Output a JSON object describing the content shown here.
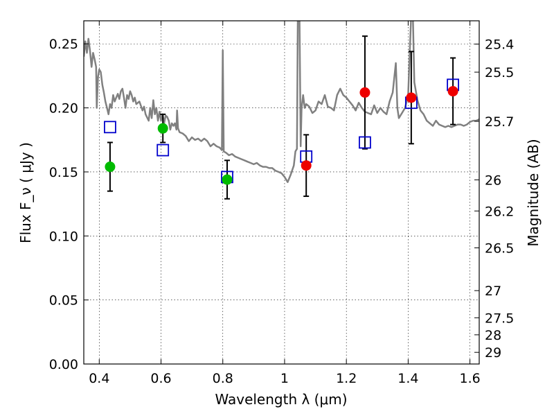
{
  "chart_data": {
    "type": "scatter",
    "title": "",
    "xlabel": "Wavelength  λ (μm)",
    "ylabel": "Flux  F_ν  ( μJy )",
    "ylabel_right": "Magnitude (AB)",
    "xlim": [
      0.35,
      1.63
    ],
    "ylim": [
      0.0,
      0.268
    ],
    "grid": true,
    "x_ticks": [
      0.4,
      0.6,
      0.8,
      1.0,
      1.2,
      1.4,
      1.6
    ],
    "x_tick_labels": [
      "0.4",
      "0.6",
      "0.8",
      "1",
      "1.2",
      "1.4",
      "1.6"
    ],
    "y_ticks": [
      0.0,
      0.05,
      0.1,
      0.15,
      0.2,
      0.25
    ],
    "y_tick_labels": [
      "0.00",
      "0.05",
      "0.10",
      "0.15",
      "0.20",
      "0.25"
    ],
    "right_ticks": [
      {
        "label": "25.4",
        "flux": 0.2498
      },
      {
        "label": "25.5",
        "flux": 0.2279
      },
      {
        "label": "25.7",
        "flux": 0.1895
      },
      {
        "label": "26",
        "flux": 0.1438
      },
      {
        "label": "26.2",
        "flux": 0.1195
      },
      {
        "label": "26.5",
        "flux": 0.0907
      },
      {
        "label": "27",
        "flux": 0.0573
      },
      {
        "label": "27.5",
        "flux": 0.0361
      },
      {
        "label": "28",
        "flux": 0.0228
      },
      {
        "label": "29",
        "flux": 0.0091
      }
    ],
    "colors": {
      "model": "#808080",
      "photometry_green": "#00bb00",
      "photometry_red": "#ee0000",
      "model_bands": "#0000cc",
      "errorbar": "#000000"
    },
    "series": [
      {
        "name": "observed_green",
        "marker": "circle",
        "color": "#00bb00",
        "points": [
          {
            "x": 0.435,
            "y": 0.154,
            "err": 0.019
          },
          {
            "x": 0.606,
            "y": 0.184,
            "err": 0.011
          },
          {
            "x": 0.814,
            "y": 0.144,
            "err": 0.015
          }
        ]
      },
      {
        "name": "observed_red",
        "marker": "circle",
        "color": "#ee0000",
        "points": [
          {
            "x": 1.07,
            "y": 0.155,
            "err": 0.024
          },
          {
            "x": 1.26,
            "y": 0.212,
            "err": 0.044
          },
          {
            "x": 1.41,
            "y": 0.208,
            "err": 0.036
          },
          {
            "x": 1.545,
            "y": 0.213,
            "err": 0.026
          }
        ]
      },
      {
        "name": "model_bands",
        "marker": "square",
        "color": "#0000cc",
        "points": [
          {
            "x": 0.435,
            "y": 0.185
          },
          {
            "x": 0.606,
            "y": 0.167
          },
          {
            "x": 0.814,
            "y": 0.146
          },
          {
            "x": 1.07,
            "y": 0.162
          },
          {
            "x": 1.26,
            "y": 0.173
          },
          {
            "x": 1.41,
            "y": 0.204
          },
          {
            "x": 1.545,
            "y": 0.218
          }
        ]
      },
      {
        "name": "model_spectrum",
        "type": "line",
        "color": "#808080",
        "points": [
          [
            0.35,
            0.24
          ],
          [
            0.355,
            0.252
          ],
          [
            0.36,
            0.243
          ],
          [
            0.365,
            0.254
          ],
          [
            0.37,
            0.245
          ],
          [
            0.375,
            0.232
          ],
          [
            0.38,
            0.243
          ],
          [
            0.385,
            0.238
          ],
          [
            0.39,
            0.232
          ],
          [
            0.392,
            0.2
          ],
          [
            0.396,
            0.224
          ],
          [
            0.4,
            0.23
          ],
          [
            0.405,
            0.228
          ],
          [
            0.41,
            0.218
          ],
          [
            0.415,
            0.212
          ],
          [
            0.42,
            0.205
          ],
          [
            0.425,
            0.2
          ],
          [
            0.43,
            0.195
          ],
          [
            0.435,
            0.203
          ],
          [
            0.44,
            0.2
          ],
          [
            0.445,
            0.21
          ],
          [
            0.45,
            0.205
          ],
          [
            0.455,
            0.208
          ],
          [
            0.46,
            0.211
          ],
          [
            0.465,
            0.207
          ],
          [
            0.47,
            0.213
          ],
          [
            0.475,
            0.215
          ],
          [
            0.48,
            0.208
          ],
          [
            0.485,
            0.2
          ],
          [
            0.49,
            0.21
          ],
          [
            0.495,
            0.207
          ],
          [
            0.5,
            0.213
          ],
          [
            0.505,
            0.21
          ],
          [
            0.51,
            0.205
          ],
          [
            0.515,
            0.208
          ],
          [
            0.52,
            0.203
          ],
          [
            0.53,
            0.205
          ],
          [
            0.54,
            0.198
          ],
          [
            0.545,
            0.201
          ],
          [
            0.55,
            0.195
          ],
          [
            0.56,
            0.19
          ],
          [
            0.565,
            0.2
          ],
          [
            0.57,
            0.192
          ],
          [
            0.575,
            0.206
          ],
          [
            0.58,
            0.195
          ],
          [
            0.585,
            0.2
          ],
          [
            0.59,
            0.19
          ],
          [
            0.595,
            0.197
          ],
          [
            0.6,
            0.19
          ],
          [
            0.605,
            0.195
          ],
          [
            0.61,
            0.188
          ],
          [
            0.615,
            0.194
          ],
          [
            0.62,
            0.193
          ],
          [
            0.625,
            0.19
          ],
          [
            0.63,
            0.183
          ],
          [
            0.635,
            0.188
          ],
          [
            0.64,
            0.186
          ],
          [
            0.645,
            0.188
          ],
          [
            0.65,
            0.183
          ],
          [
            0.652,
            0.198
          ],
          [
            0.655,
            0.184
          ],
          [
            0.66,
            0.181
          ],
          [
            0.67,
            0.18
          ],
          [
            0.68,
            0.178
          ],
          [
            0.69,
            0.174
          ],
          [
            0.7,
            0.177
          ],
          [
            0.71,
            0.175
          ],
          [
            0.72,
            0.176
          ],
          [
            0.73,
            0.174
          ],
          [
            0.74,
            0.176
          ],
          [
            0.75,
            0.174
          ],
          [
            0.76,
            0.17
          ],
          [
            0.77,
            0.172
          ],
          [
            0.78,
            0.17
          ],
          [
            0.79,
            0.169
          ],
          [
            0.797,
            0.167
          ],
          [
            0.8,
            0.245
          ],
          [
            0.803,
            0.166
          ],
          [
            0.81,
            0.165
          ],
          [
            0.82,
            0.163
          ],
          [
            0.83,
            0.164
          ],
          [
            0.84,
            0.162
          ],
          [
            0.85,
            0.161
          ],
          [
            0.86,
            0.16
          ],
          [
            0.87,
            0.159
          ],
          [
            0.88,
            0.158
          ],
          [
            0.89,
            0.157
          ],
          [
            0.9,
            0.156
          ],
          [
            0.91,
            0.157
          ],
          [
            0.92,
            0.155
          ],
          [
            0.93,
            0.154
          ],
          [
            0.94,
            0.154
          ],
          [
            0.95,
            0.153
          ],
          [
            0.96,
            0.153
          ],
          [
            0.97,
            0.151
          ],
          [
            0.98,
            0.15
          ],
          [
            0.99,
            0.149
          ],
          [
            1.0,
            0.146
          ],
          [
            1.01,
            0.142
          ],
          [
            1.02,
            0.148
          ],
          [
            1.03,
            0.155
          ],
          [
            1.035,
            0.166
          ],
          [
            1.04,
            0.168
          ],
          [
            1.043,
            0.275
          ],
          [
            1.048,
            0.275
          ],
          [
            1.052,
            0.17
          ],
          [
            1.055,
            0.2
          ],
          [
            1.06,
            0.21
          ],
          [
            1.065,
            0.2
          ],
          [
            1.07,
            0.203
          ],
          [
            1.08,
            0.201
          ],
          [
            1.09,
            0.196
          ],
          [
            1.1,
            0.198
          ],
          [
            1.11,
            0.205
          ],
          [
            1.12,
            0.203
          ],
          [
            1.13,
            0.21
          ],
          [
            1.14,
            0.201
          ],
          [
            1.15,
            0.2
          ],
          [
            1.16,
            0.198
          ],
          [
            1.17,
            0.21
          ],
          [
            1.18,
            0.215
          ],
          [
            1.19,
            0.21
          ],
          [
            1.2,
            0.208
          ],
          [
            1.21,
            0.205
          ],
          [
            1.22,
            0.202
          ],
          [
            1.23,
            0.198
          ],
          [
            1.24,
            0.204
          ],
          [
            1.25,
            0.2
          ],
          [
            1.26,
            0.197
          ],
          [
            1.27,
            0.196
          ],
          [
            1.28,
            0.195
          ],
          [
            1.29,
            0.202
          ],
          [
            1.3,
            0.196
          ],
          [
            1.31,
            0.2
          ],
          [
            1.32,
            0.197
          ],
          [
            1.33,
            0.195
          ],
          [
            1.34,
            0.205
          ],
          [
            1.35,
            0.212
          ],
          [
            1.36,
            0.235
          ],
          [
            1.365,
            0.2
          ],
          [
            1.37,
            0.192
          ],
          [
            1.38,
            0.196
          ],
          [
            1.39,
            0.2
          ],
          [
            1.4,
            0.21
          ],
          [
            1.41,
            0.275
          ],
          [
            1.415,
            0.275
          ],
          [
            1.42,
            0.22
          ],
          [
            1.43,
            0.206
          ],
          [
            1.44,
            0.198
          ],
          [
            1.45,
            0.195
          ],
          [
            1.46,
            0.19
          ],
          [
            1.47,
            0.188
          ],
          [
            1.48,
            0.186
          ],
          [
            1.49,
            0.19
          ],
          [
            1.5,
            0.187
          ],
          [
            1.51,
            0.186
          ],
          [
            1.52,
            0.185
          ],
          [
            1.53,
            0.186
          ],
          [
            1.54,
            0.185
          ],
          [
            1.55,
            0.186
          ],
          [
            1.56,
            0.187
          ],
          [
            1.57,
            0.187
          ],
          [
            1.58,
            0.186
          ],
          [
            1.59,
            0.187
          ],
          [
            1.6,
            0.189
          ],
          [
            1.61,
            0.19
          ],
          [
            1.62,
            0.19
          ],
          [
            1.63,
            0.191
          ]
        ]
      }
    ]
  }
}
